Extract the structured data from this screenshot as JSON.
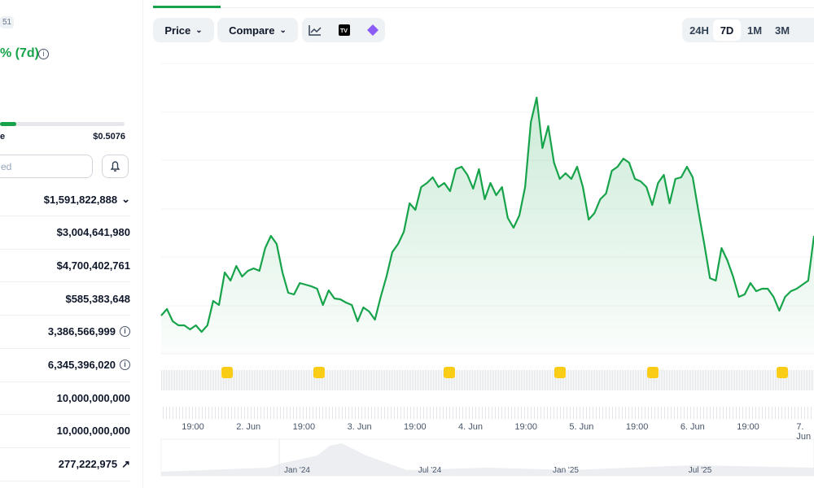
{
  "sidebar": {
    "badge": "51",
    "change": "% (7d)",
    "range_low_label": "e",
    "range_high": "$0.5076",
    "alert_placeholder": "ed",
    "stats": [
      "$1,591,822,888",
      "$3,004,641,980",
      "$4,700,402,761",
      "$585,383,648",
      "3,386,566,999",
      "6,345,396,020",
      "10,000,000,000",
      "10,000,000,000",
      "277,222,975"
    ]
  },
  "toolbar": {
    "price": "Price",
    "compare": "Compare",
    "ranges": [
      "24H",
      "7D",
      "1M",
      "3M"
    ]
  },
  "chart_data": {
    "type": "line",
    "color": "#16a34a",
    "ylim": [
      0,
      357
    ],
    "x_tick_labels": [
      "19:00",
      "2. Jun",
      "19:00",
      "3. Jun",
      "19:00",
      "4. Jun",
      "19:00",
      "5. Jun",
      "19:00",
      "6. Jun",
      "19:00",
      "7. Jun"
    ],
    "navigator_labels": [
      "Jan '24",
      "Jul '24",
      "Jan '25",
      "Jul '25"
    ],
    "values": [
      47,
      55,
      40,
      35,
      35,
      30,
      35,
      27,
      35,
      65,
      60,
      100,
      90,
      108,
      95,
      102,
      105,
      102,
      130,
      145,
      135,
      100,
      75,
      73,
      87,
      85,
      83,
      80,
      60,
      78,
      68,
      67,
      63,
      60,
      40,
      57,
      52,
      42,
      70,
      95,
      125,
      135,
      150,
      185,
      177,
      205,
      210,
      217,
      205,
      210,
      200,
      227,
      230,
      220,
      203,
      227,
      190,
      210,
      195,
      205,
      167,
      155,
      170,
      205,
      285,
      315,
      253,
      280,
      235,
      215,
      222,
      215,
      230,
      205,
      165,
      173,
      190,
      197,
      225,
      230,
      240,
      235,
      215,
      212,
      205,
      183,
      210,
      220,
      185,
      215,
      217,
      230,
      217,
      175,
      135,
      93,
      90,
      130,
      115,
      95,
      70,
      73,
      87,
      77,
      80,
      80,
      70,
      53,
      70,
      77,
      80,
      85,
      90,
      145
    ]
  }
}
